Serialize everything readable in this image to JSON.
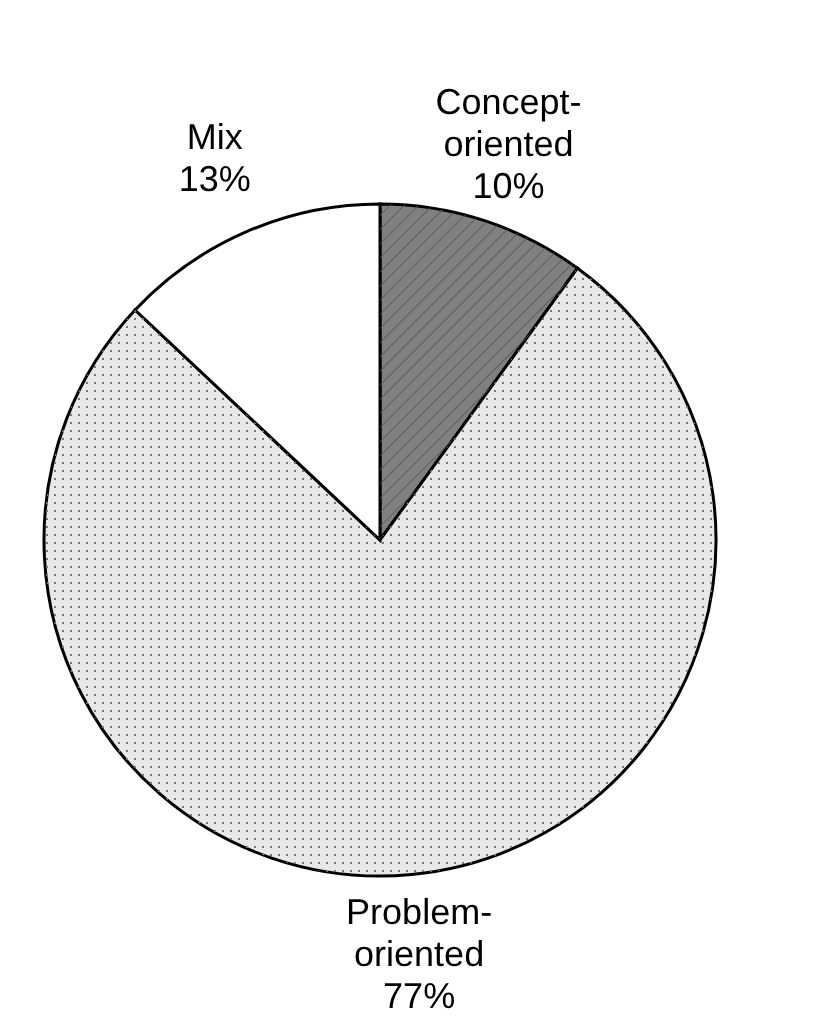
{
  "chart_data": {
    "type": "pie",
    "categories": [
      "Concept-oriented",
      "Problem-oriented",
      "Mix"
    ],
    "values": [
      10,
      77,
      13
    ],
    "value_labels": [
      "10%",
      "77%",
      "13%"
    ],
    "colors": [
      "#808080",
      "#e8e8e8",
      "#ffffff"
    ]
  }
}
